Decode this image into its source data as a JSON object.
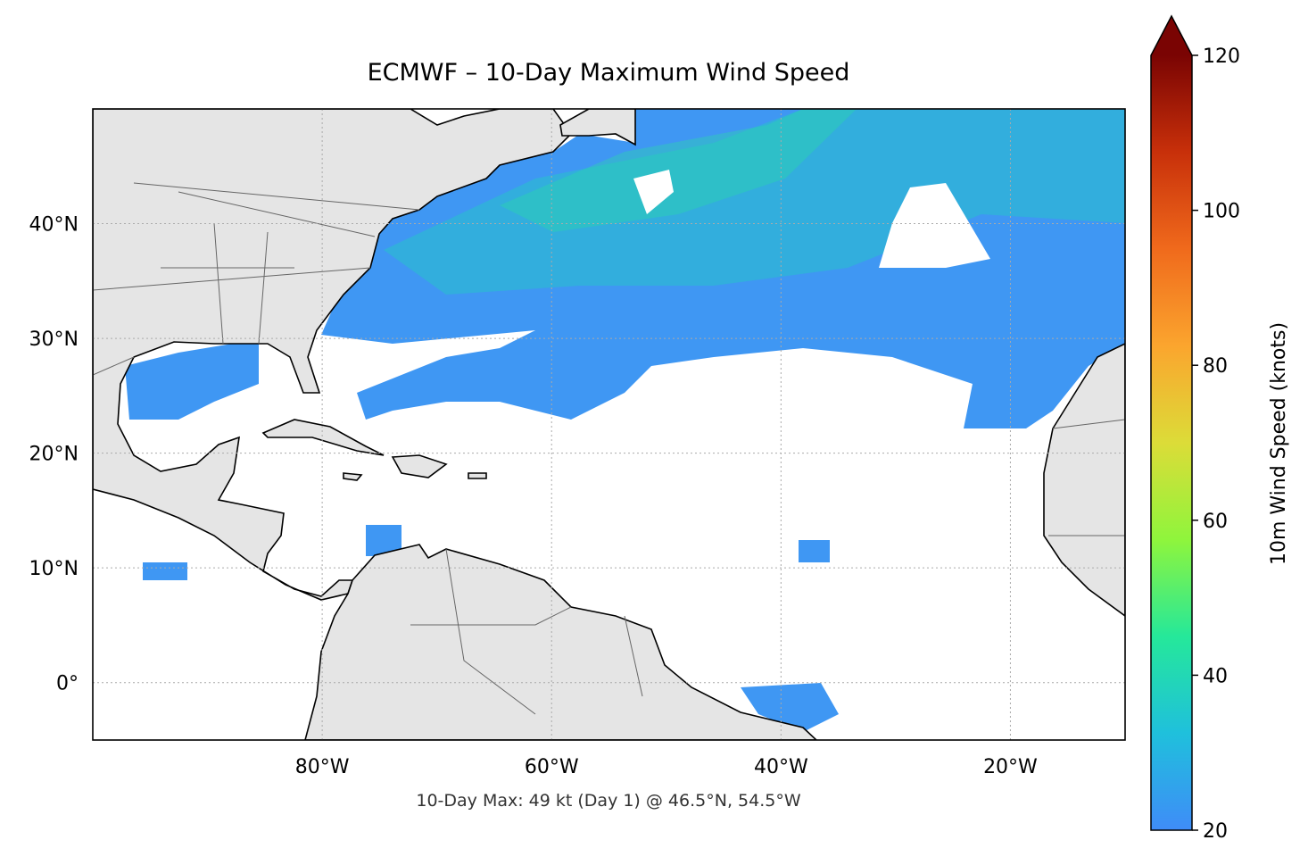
{
  "chart_data": {
    "type": "map",
    "title": "ECMWF – 10-Day Maximum Wind Speed",
    "annotation": "10-Day Max: 49 kt (Day 1) @ 46.5°N, 54.5°W",
    "xlim": [
      -100,
      -10
    ],
    "ylim": [
      -5,
      50
    ],
    "xticks": [
      {
        "value": -80,
        "label": "80°W"
      },
      {
        "value": -60,
        "label": "60°W"
      },
      {
        "value": -40,
        "label": "40°W"
      },
      {
        "value": -20,
        "label": "20°W"
      }
    ],
    "yticks": [
      {
        "value": 0,
        "label": "0°"
      },
      {
        "value": 10,
        "label": "10°N"
      },
      {
        "value": 20,
        "label": "20°N"
      },
      {
        "value": 30,
        "label": "30°N"
      },
      {
        "value": 40,
        "label": "40°N"
      }
    ],
    "grid": true,
    "colorbar": {
      "label": "10m Wind Speed (knots)",
      "lim": [
        20,
        120
      ],
      "ticks": [
        20,
        40,
        60,
        80,
        100,
        120
      ],
      "extend": "max",
      "colors": [
        "#3f8cf8",
        "#1fc0dc",
        "#25e89a",
        "#8ff53c",
        "#dcdc38",
        "#fba52e",
        "#f06a1c",
        "#c8300a",
        "#7a0403"
      ]
    }
  }
}
